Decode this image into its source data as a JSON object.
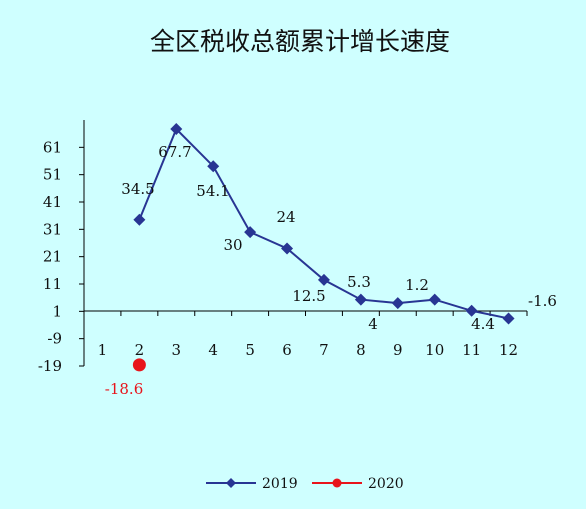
{
  "title": "全区税收总额累计增长速度",
  "colors": {
    "background": "#cfffff",
    "series_2019": "#283593",
    "series_2020": "#e8141b"
  },
  "chart_data": {
    "type": "line",
    "title": "全区税收总额累计增长速度",
    "xlabel": "",
    "ylabel": "",
    "x": [
      1,
      2,
      3,
      4,
      5,
      6,
      7,
      8,
      9,
      10,
      11,
      12
    ],
    "x_tick_labels": [
      "1",
      "2",
      "3",
      "4",
      "5",
      "6",
      "7",
      "8",
      "9",
      "10",
      "11",
      "12"
    ],
    "y_ticks": [
      61,
      51,
      41,
      31,
      21,
      11,
      1,
      -9,
      -19
    ],
    "y_tick_labels": [
      "61",
      "51",
      "41",
      "31",
      "21",
      "11",
      "1",
      "-9",
      "-19"
    ],
    "ylim": [
      -19,
      71
    ],
    "grid": false,
    "legend_position": "bottom",
    "series": [
      {
        "name": "2019",
        "marker": "diamond",
        "x": [
          2,
          3,
          4,
          5,
          6,
          7,
          8,
          9,
          10,
          11,
          12
        ],
        "values": [
          34.5,
          67.7,
          54.1,
          30,
          24,
          12.5,
          5.3,
          4,
          5.3,
          1.2,
          -1.6
        ],
        "labels": [
          "34.5",
          "67.7",
          "54.1",
          "30",
          "24",
          "12.5",
          "5.3",
          "4",
          "",
          "1.2",
          "-1.6"
        ]
      },
      {
        "name": "2020",
        "marker": "circle",
        "x": [
          2
        ],
        "values": [
          -18.6
        ],
        "labels": [
          "-18.6"
        ]
      }
    ],
    "extra_labels": [
      "4.4"
    ]
  }
}
